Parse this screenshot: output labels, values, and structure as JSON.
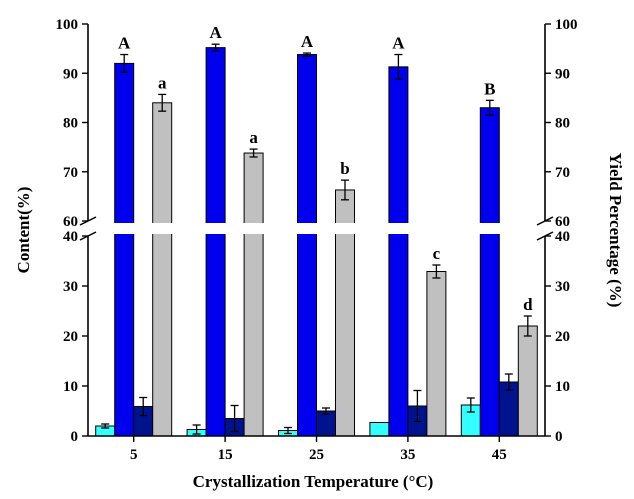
{
  "chart_data": {
    "type": "bar",
    "xlabel": "Crystallization Temperature (°C)",
    "ylabel_left": "Content(%)",
    "ylabel_right": "Yield Percentage (%)",
    "categories": [
      "5",
      "15",
      "25",
      "35",
      "45"
    ],
    "y_axis_break": {
      "lower_range": [
        0,
        40
      ],
      "upper_range": [
        60,
        100
      ]
    },
    "y_ticks_lower": [
      "0",
      "10",
      "20",
      "30",
      "40"
    ],
    "y_ticks_upper": [
      "60",
      "70",
      "80",
      "90",
      "100"
    ],
    "series": [
      {
        "color": "#33ffff",
        "values": [
          2.0,
          1.3,
          1.1,
          2.7,
          6.2
        ],
        "errors": [
          0.4,
          0.9,
          0.6,
          0,
          1.4
        ]
      },
      {
        "color": "#0000ee",
        "values": [
          92.0,
          95.2,
          93.8,
          91.3,
          83.0
        ],
        "errors": [
          1.8,
          0.7,
          0.3,
          2.5,
          1.5
        ],
        "sig_labels": [
          "A",
          "A",
          "A",
          "A",
          "B"
        ]
      },
      {
        "color": "#00138f",
        "values": [
          5.9,
          3.5,
          5.0,
          6.0,
          10.8
        ],
        "errors": [
          1.8,
          2.6,
          0.6,
          3.1,
          1.6
        ]
      },
      {
        "color": "#c0c0c0",
        "values": [
          84.0,
          73.8,
          66.3,
          32.9,
          22.0
        ],
        "errors": [
          1.7,
          0.8,
          2.0,
          1.3,
          2.0
        ],
        "sig_labels": [
          "a",
          "a",
          "b",
          "c",
          "d"
        ]
      }
    ]
  }
}
